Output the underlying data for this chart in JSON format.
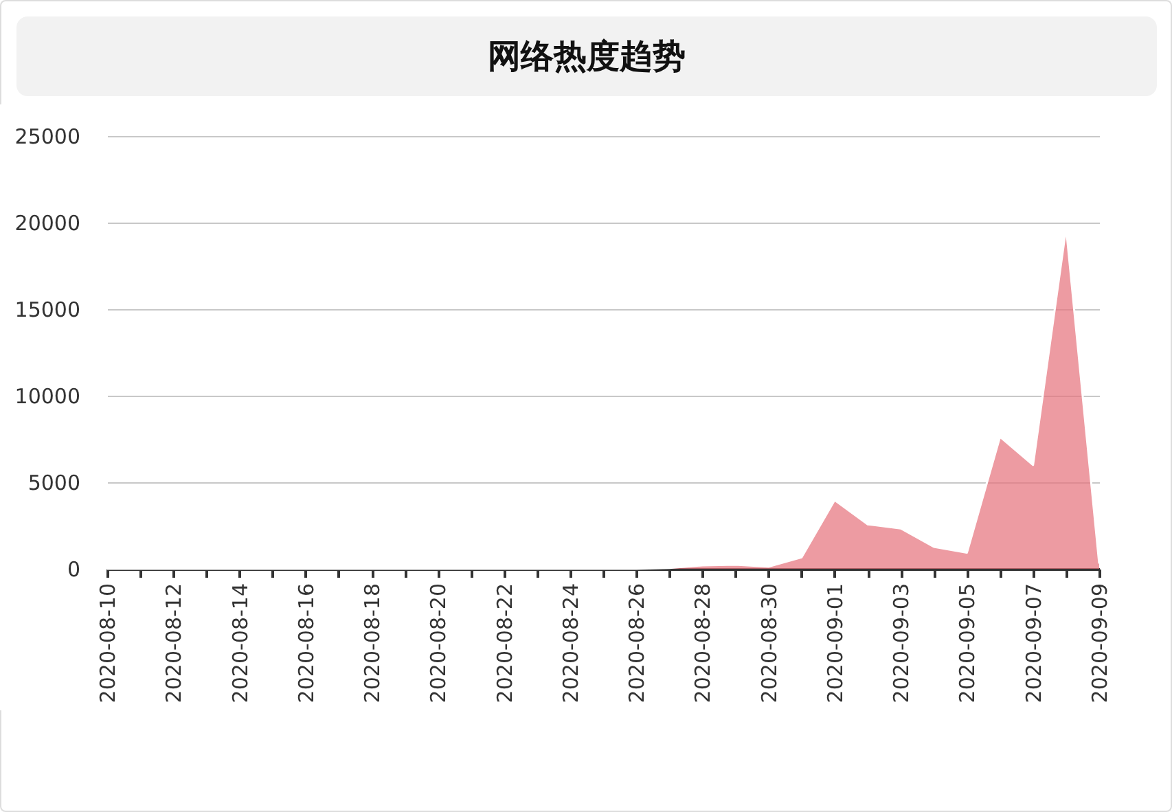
{
  "chart_data": {
    "type": "area",
    "title": "网络热度趋势",
    "categories": [
      "2020-08-10",
      null,
      "2020-08-12",
      null,
      "2020-08-14",
      null,
      "2020-08-16",
      null,
      "2020-08-18",
      null,
      "2020-08-20",
      null,
      "2020-08-22",
      null,
      "2020-08-24",
      null,
      "2020-08-26",
      null,
      "2020-08-28",
      null,
      "2020-08-30",
      null,
      "2020-09-01",
      null,
      "2020-09-03",
      null,
      "2020-09-05",
      null,
      "2020-09-07",
      null,
      "2020-09-09"
    ],
    "series": [
      {
        "color": "#e5707a",
        "values": [
          0,
          0,
          0,
          0,
          0,
          0,
          0,
          0,
          0,
          0,
          0,
          0,
          0,
          0,
          0,
          0,
          0,
          50,
          200,
          240,
          130,
          660,
          3970,
          2570,
          2330,
          1270,
          930,
          7620,
          6000,
          19700,
          300
        ]
      }
    ],
    "ylim": [
      0,
      25000
    ],
    "yticks": [
      0,
      5000,
      10000,
      15000,
      20000,
      25000
    ],
    "grid": "y"
  }
}
